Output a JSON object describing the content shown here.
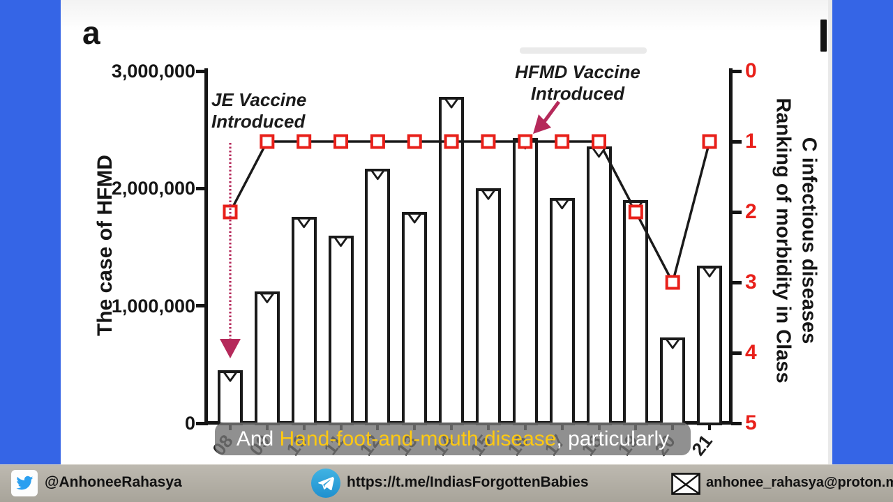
{
  "page": {
    "background_color": "#3565e6",
    "content_background": "#ffffff",
    "footer_background": "#b0aca1"
  },
  "figure": {
    "panel_label": "a"
  },
  "chart_data": {
    "type": "combo",
    "categories": [
      "2008",
      "2009",
      "2010",
      "2011",
      "2012",
      "2013",
      "2014",
      "2015",
      "2016",
      "2017",
      "2018",
      "2019",
      "2020",
      "2021"
    ],
    "x_tick_labels": [
      "08",
      "09",
      "10",
      "11",
      "12",
      "13",
      "14",
      "15",
      "16",
      "17",
      "18",
      "19",
      "20",
      "21"
    ],
    "series": [
      {
        "name": "The case of HFMD",
        "type": "bar",
        "values": [
          450000,
          1120000,
          1760000,
          1600000,
          2170000,
          1800000,
          2780000,
          2000000,
          2430000,
          1920000,
          2360000,
          1900000,
          730000,
          1340000
        ]
      },
      {
        "name": "Ranking of morbidity in Class C infectious diseases",
        "type": "line",
        "values": [
          2,
          1,
          1,
          1,
          1,
          1,
          1,
          1,
          1,
          1,
          1,
          2,
          3,
          1
        ]
      }
    ],
    "left_axis": {
      "label": "The case of HFMD",
      "tick_labels": [
        "3,000,000",
        "2,000,000",
        "1,000,000",
        "0"
      ],
      "tick_values": [
        3000000,
        2000000,
        1000000,
        0
      ],
      "range": [
        0,
        3000000
      ]
    },
    "right_axis": {
      "label": "Ranking of morbidity in Class C infectious diseases",
      "label_lines": [
        "Ranking of morbidity in Class",
        "C infectious diseases"
      ],
      "tick_labels": [
        "0",
        "1",
        "2",
        "3",
        "4",
        "5"
      ],
      "tick_values": [
        0,
        1,
        2,
        3,
        4,
        5
      ],
      "range": [
        0,
        5
      ],
      "inverted": true,
      "tick_color": "#e8201a"
    },
    "annotations": [
      {
        "id": "je-vaccine",
        "text_lines": [
          "JE Vaccine",
          "Introduced"
        ],
        "target_category": "2008"
      },
      {
        "id": "hfmd-vaccine",
        "text_lines": [
          "HFMD Vaccine",
          "Introduced"
        ],
        "target_category": "2016"
      }
    ],
    "colors": {
      "bar_fill": "#ffffff",
      "bar_border": "#1a1a1a",
      "line": "#1a1a1a",
      "marker": "#e8201a",
      "arrow": "#b5295a"
    },
    "legend": "none",
    "grid": false
  },
  "subtitle": {
    "segments": [
      {
        "text": "And ",
        "color": "#ffffff"
      },
      {
        "text": "Hand-foot-and-mouth disease",
        "color": "#fec911"
      },
      {
        "text": ", particularly",
        "color": "#ffffff"
      }
    ]
  },
  "footer": {
    "twitter": {
      "icon": "twitter-bird-icon",
      "text": "@AnhoneeRahasya"
    },
    "telegram": {
      "icon": "telegram-icon",
      "text": "https://t.me/IndiasForgottenBabies"
    },
    "email": {
      "icon": "envelope-icon",
      "text": "anhonee_rahasya@proton.me"
    }
  }
}
